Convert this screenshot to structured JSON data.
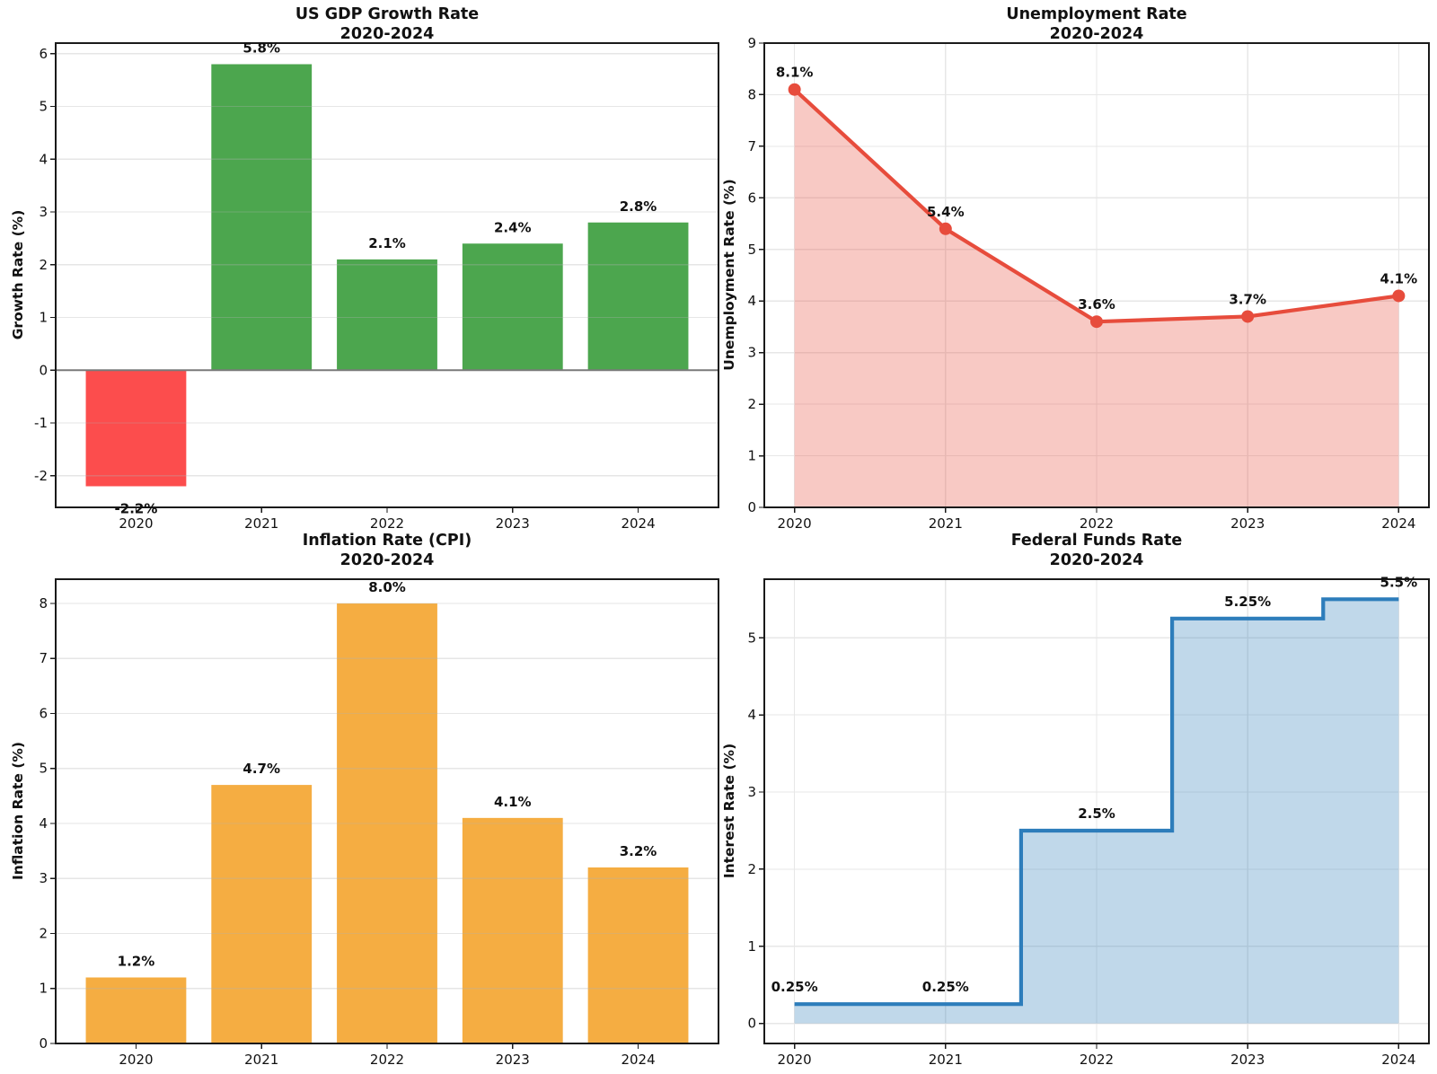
{
  "figure": {
    "background": "#ffffff",
    "spine_color": "#1a1a1a",
    "grid_color": "#e7e7e7",
    "zero_line_color": "#7a7a7a"
  },
  "chart_data": [
    {
      "id": "gdp-growth",
      "type": "bar",
      "title": "US GDP Growth Rate",
      "subtitle": "2020-2024",
      "ylabel": "Growth Rate (%)",
      "categories": [
        "2020",
        "2021",
        "2022",
        "2023",
        "2024"
      ],
      "values": [
        -2.2,
        5.8,
        2.1,
        2.4,
        2.8
      ],
      "point_labels": [
        "-2.2%",
        "5.8%",
        "2.1%",
        "2.4%",
        "2.8%"
      ],
      "bar_colors": [
        "#fc4d4d",
        "#4ca64e",
        "#4ca64e",
        "#4ca64e",
        "#4ca64e"
      ],
      "positive_color": "#4ca64e",
      "negative_color": "#fc4d4d",
      "ylim": [
        -2.6,
        6.2
      ],
      "yticks": [
        -2,
        -1,
        0,
        1,
        2,
        3,
        4,
        5,
        6
      ],
      "grid": "y",
      "zero_line": true
    },
    {
      "id": "unemployment",
      "type": "line",
      "title": "Unemployment Rate",
      "subtitle": "2020-2024",
      "ylabel": "Unemployment Rate (%)",
      "categories": [
        "2020",
        "2021",
        "2022",
        "2023",
        "2024"
      ],
      "x": [
        2020,
        2021,
        2022,
        2023,
        2024
      ],
      "values": [
        8.1,
        5.4,
        3.6,
        3.7,
        4.1
      ],
      "point_labels": [
        "8.1%",
        "5.4%",
        "3.6%",
        "3.7%",
        "4.1%"
      ],
      "line_color": "#e74c3c",
      "fill_opacity": 0.3,
      "marker": "circle",
      "xlim": [
        2019.8,
        2024.2
      ],
      "ylim": [
        0,
        9
      ],
      "yticks": [
        0,
        1,
        2,
        3,
        4,
        5,
        6,
        7,
        8,
        9
      ],
      "grid": "both"
    },
    {
      "id": "inflation",
      "type": "bar",
      "title": "Inflation Rate (CPI)",
      "subtitle": "2020-2024",
      "ylabel": "Inflation Rate (%)",
      "categories": [
        "2020",
        "2021",
        "2022",
        "2023",
        "2024"
      ],
      "values": [
        1.2,
        4.7,
        8.0,
        4.1,
        3.2
      ],
      "point_labels": [
        "1.2%",
        "4.7%",
        "8.0%",
        "4.1%",
        "3.2%"
      ],
      "bar_colors": [
        "#f5ad42",
        "#f5ad42",
        "#f5ad42",
        "#f5ad42",
        "#f5ad42"
      ],
      "ylim": [
        0,
        8.44
      ],
      "yticks": [
        0,
        1,
        2,
        3,
        4,
        5,
        6,
        7,
        8
      ],
      "grid": "y",
      "zero_line": false
    },
    {
      "id": "fed-funds",
      "type": "step",
      "title": "Federal Funds Rate",
      "subtitle": "2020-2024",
      "ylabel": "Interest Rate (%)",
      "categories": [
        "2020",
        "2021",
        "2022",
        "2023",
        "2024"
      ],
      "x": [
        2020,
        2021,
        2022,
        2023,
        2024
      ],
      "values": [
        0.25,
        0.25,
        2.5,
        5.25,
        5.5
      ],
      "point_labels": [
        "0.25%",
        "0.25%",
        "2.5%",
        "5.25%",
        "5.5%"
      ],
      "line_color": "#2d7dbb",
      "fill_opacity": 0.3,
      "xlim": [
        2019.8,
        2024.2
      ],
      "ylim": [
        -0.26,
        5.76
      ],
      "yticks": [
        0,
        1,
        2,
        3,
        4,
        5
      ],
      "grid": "both"
    }
  ]
}
